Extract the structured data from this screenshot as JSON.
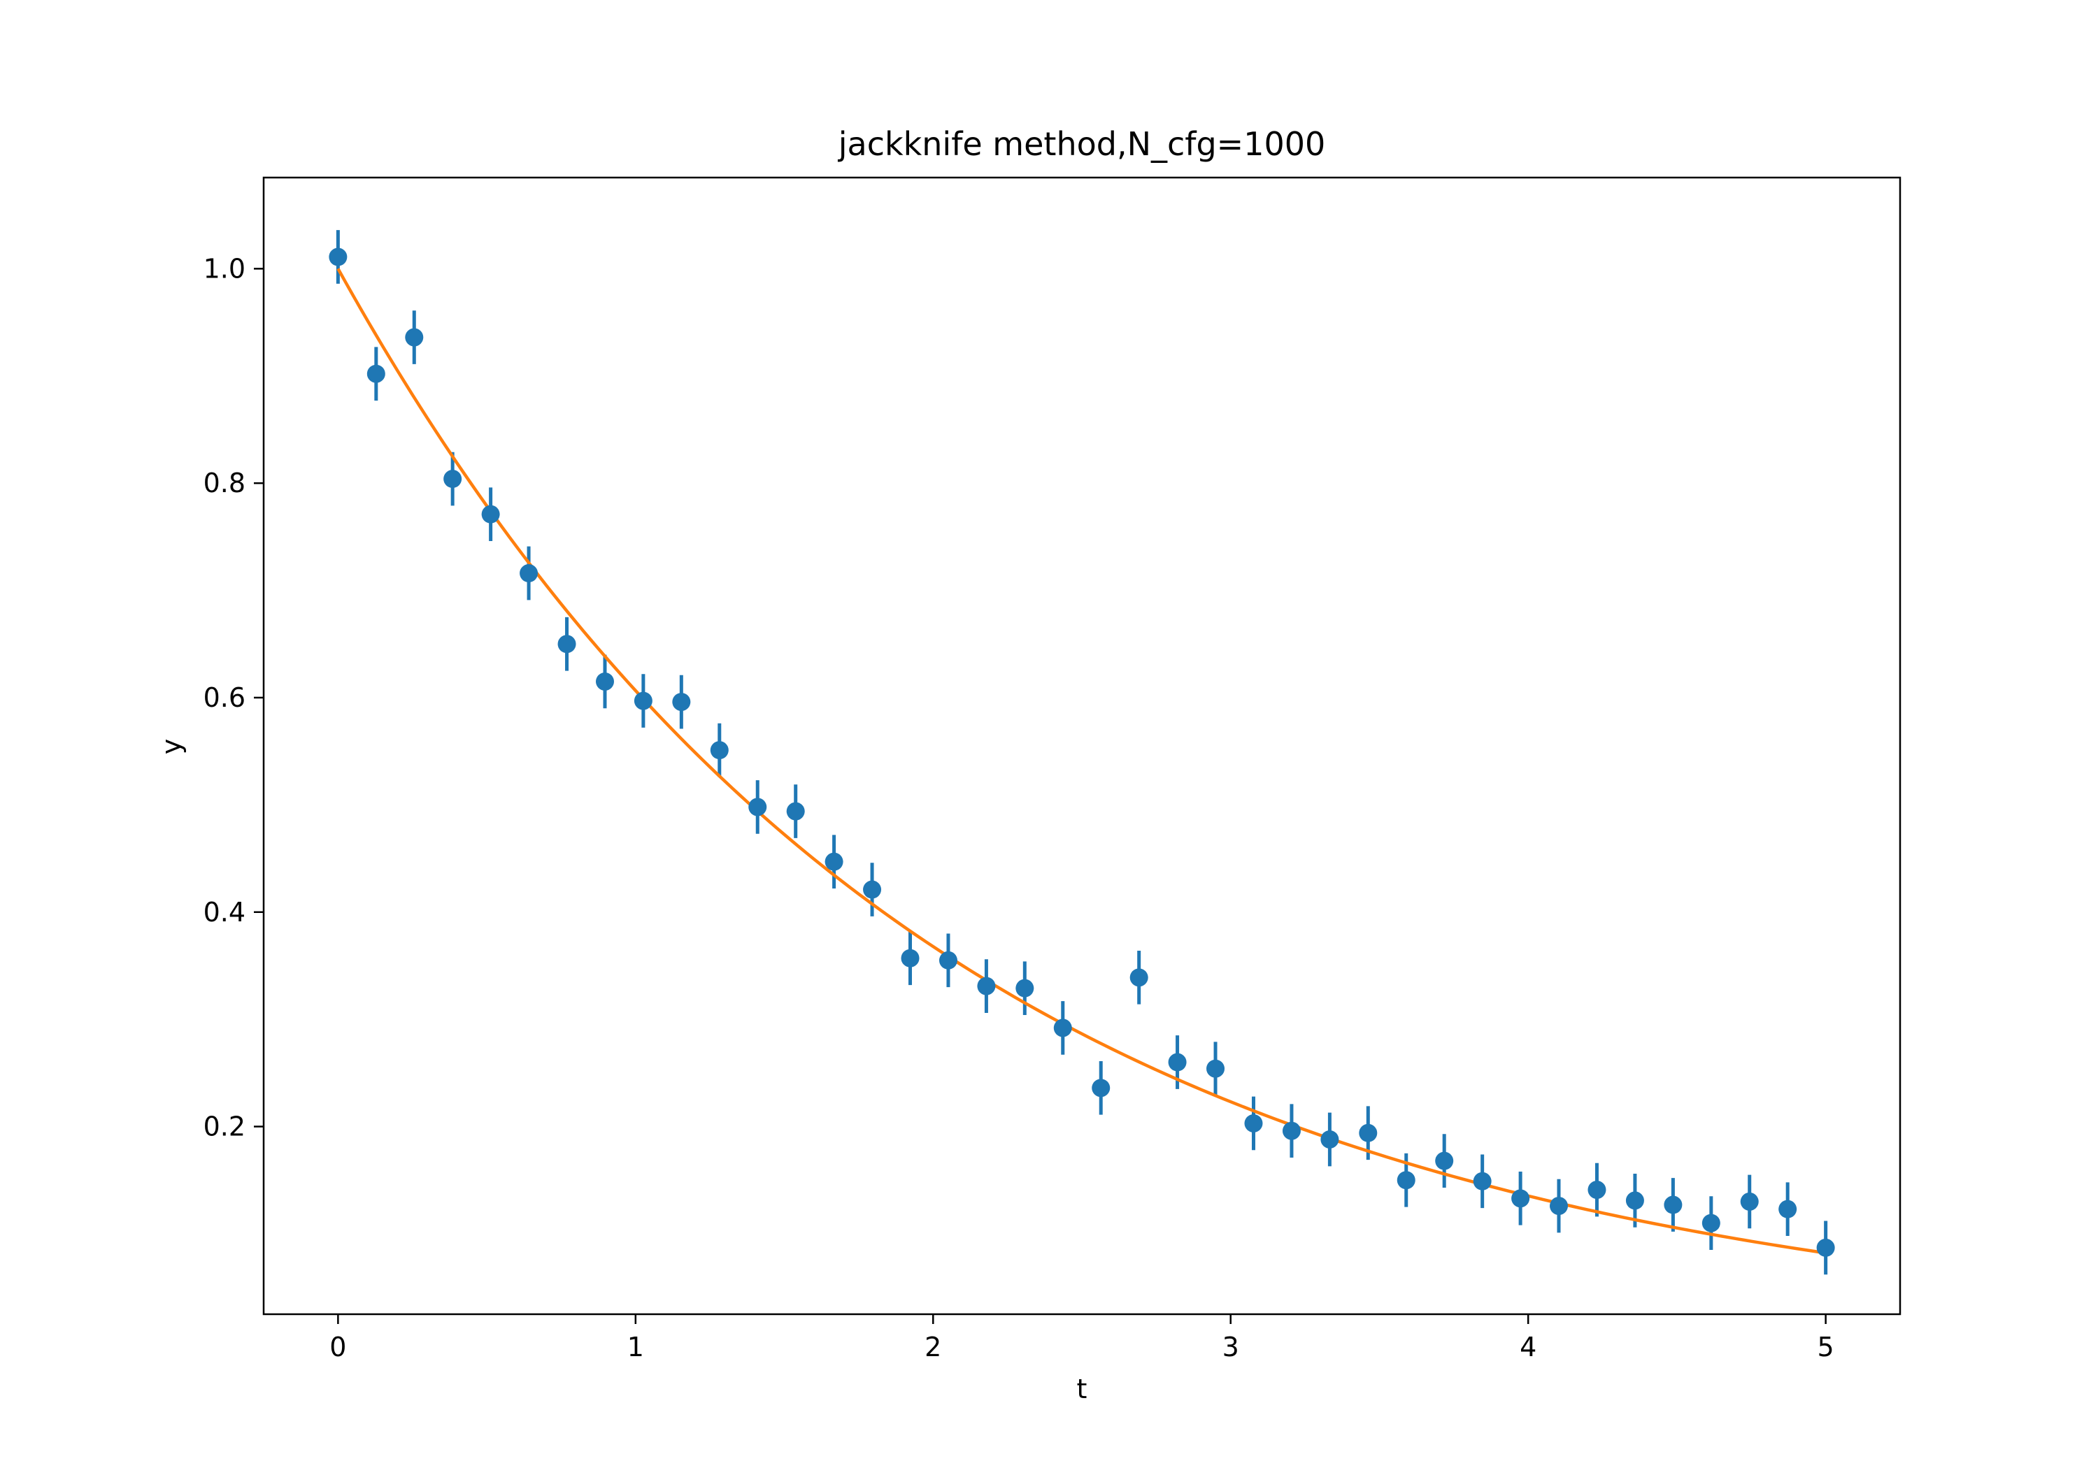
{
  "chart_data": {
    "type": "scatter",
    "title": "jackknife method,N_cfg=1000",
    "xlabel": "t",
    "ylabel": "y",
    "xlim": [
      -0.25,
      5.25
    ],
    "ylim": [
      0.025,
      1.085
    ],
    "grid": false,
    "x_ticks": [
      0,
      1,
      2,
      3,
      4,
      5
    ],
    "x_tick_labels": [
      "0",
      "1",
      "2",
      "3",
      "4",
      "5"
    ],
    "y_ticks": [
      0.2,
      0.4,
      0.6,
      0.8,
      1.0
    ],
    "y_tick_labels": [
      "0.2",
      "0.4",
      "0.6",
      "0.8",
      "1.0"
    ],
    "colors": {
      "points": "#1f77b4",
      "fit": "#ff7f0e"
    },
    "series": [
      {
        "kind": "errorbar",
        "x": [
          0.0,
          0.128,
          0.256,
          0.385,
          0.513,
          0.641,
          0.769,
          0.897,
          1.026,
          1.154,
          1.282,
          1.41,
          1.538,
          1.667,
          1.795,
          1.923,
          2.051,
          2.179,
          2.308,
          2.436,
          2.564,
          2.692,
          2.821,
          2.949,
          3.077,
          3.205,
          3.333,
          3.462,
          3.59,
          3.718,
          3.846,
          3.974,
          4.103,
          4.231,
          4.359,
          4.487,
          4.615,
          4.744,
          4.872,
          5.0
        ],
        "y": [
          1.011,
          0.902,
          0.936,
          0.804,
          0.771,
          0.716,
          0.65,
          0.615,
          0.597,
          0.596,
          0.551,
          0.498,
          0.494,
          0.447,
          0.421,
          0.357,
          0.355,
          0.331,
          0.329,
          0.292,
          0.236,
          0.339,
          0.26,
          0.254,
          0.203,
          0.196,
          0.188,
          0.194,
          0.15,
          0.168,
          0.149,
          0.133,
          0.126,
          0.141,
          0.131,
          0.127,
          0.11,
          0.13,
          0.123,
          0.087
        ],
        "yerr": 0.025
      },
      {
        "kind": "line",
        "function": "y = exp(-0.5 t)",
        "x_range": [
          0,
          5
        ]
      }
    ]
  }
}
